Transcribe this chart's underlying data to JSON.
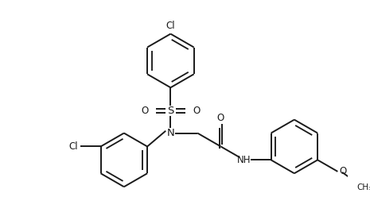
{
  "bg_color": "#ffffff",
  "line_color": "#1a1a1a",
  "lw": 1.4,
  "figsize": [
    4.65,
    2.48
  ],
  "dpi": 100,
  "xlim": [
    0,
    9.3
  ],
  "ylim": [
    0,
    4.96
  ]
}
